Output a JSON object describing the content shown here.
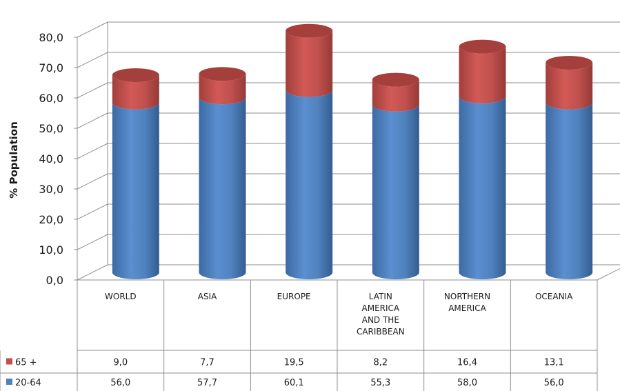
{
  "chart_data": {
    "type": "bar",
    "ylabel": "% Population",
    "ylim": [
      0,
      80
    ],
    "yticks": [
      "0,0",
      "10,0",
      "20,0",
      "30,0",
      "40,0",
      "50,0",
      "60,0",
      "70,0",
      "80,0"
    ],
    "categories": [
      [
        "WORLD"
      ],
      [
        "ASIA"
      ],
      [
        "EUROPE"
      ],
      [
        "LATIN",
        "AMERICA",
        "AND THE",
        "CARIBBEAN"
      ],
      [
        "NORTHERN",
        "AMERICA"
      ],
      [
        "OCEANIA"
      ]
    ],
    "stacked": true,
    "three_d": true,
    "grid": true,
    "data_table": true,
    "series": [
      {
        "name": "20-64",
        "color": "#4f81bd",
        "values": [
          56.0,
          57.7,
          60.1,
          55.3,
          58.0,
          56.0
        ],
        "labels": [
          "56,0",
          "57,7",
          "60,1",
          "55,3",
          "58,0",
          "56,0"
        ]
      },
      {
        "name": "65 +",
        "color": "#c0504d",
        "values": [
          9.0,
          7.7,
          19.5,
          8.2,
          16.4,
          13.1
        ],
        "labels": [
          "9,0",
          "7,7",
          "19,5",
          "8,2",
          "16,4",
          "13,1"
        ]
      }
    ]
  }
}
